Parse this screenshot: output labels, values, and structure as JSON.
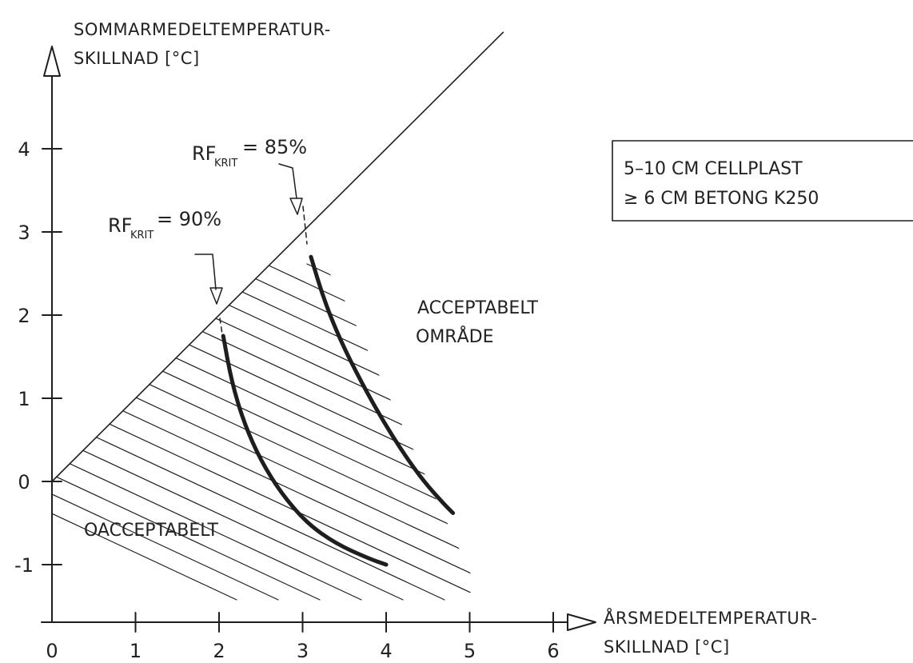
{
  "chart_data": {
    "type": "line",
    "ylabel": [
      "SOMMARMEDELTEMPERATUR-",
      "SKILLNAD [°C]"
    ],
    "xlabel": [
      "ÅRSMEDELTEMPERATUR-",
      "SKILLNAD [°C]"
    ],
    "x_ticks": [
      "0",
      "1",
      "2",
      "3",
      "4",
      "5",
      "6"
    ],
    "y_ticks": [
      "-1",
      "0",
      "1",
      "2",
      "3",
      "4"
    ],
    "xlim": [
      0,
      6
    ],
    "ylim": [
      -1.6,
      4.8
    ],
    "grid": false,
    "boundary_line": {
      "x": [
        0,
        5.4
      ],
      "y": [
        0,
        5.4
      ]
    },
    "series": [
      {
        "name": "RF_KRIT = 90%",
        "x": [
          2.05,
          2.15,
          2.3,
          2.5,
          2.75,
          3.05,
          3.4,
          3.8,
          4.0
        ],
        "y": [
          1.75,
          1.2,
          0.7,
          0.25,
          -0.15,
          -0.5,
          -0.75,
          -0.93,
          -1.0
        ]
      },
      {
        "name": "RF_KRIT = 85%",
        "x": [
          3.1,
          3.25,
          3.45,
          3.7,
          3.95,
          4.2,
          4.45,
          4.7,
          4.8
        ],
        "y": [
          2.7,
          2.2,
          1.7,
          1.2,
          0.75,
          0.35,
          0.0,
          -0.28,
          -0.38
        ]
      }
    ],
    "annotations": [
      {
        "main": "RF",
        "sub": "KRIT",
        "value": "= 90%"
      },
      {
        "main": "RF",
        "sub": "KRIT",
        "value": "= 85%"
      }
    ],
    "regions": {
      "unacceptable": "OACCEPTABELT",
      "acceptable": [
        "ACCEPTABELT",
        "OMRÅDE"
      ]
    },
    "note": [
      "5–10 CM CELLPLAST",
      "≥ 6 CM  BETONG K250"
    ]
  }
}
